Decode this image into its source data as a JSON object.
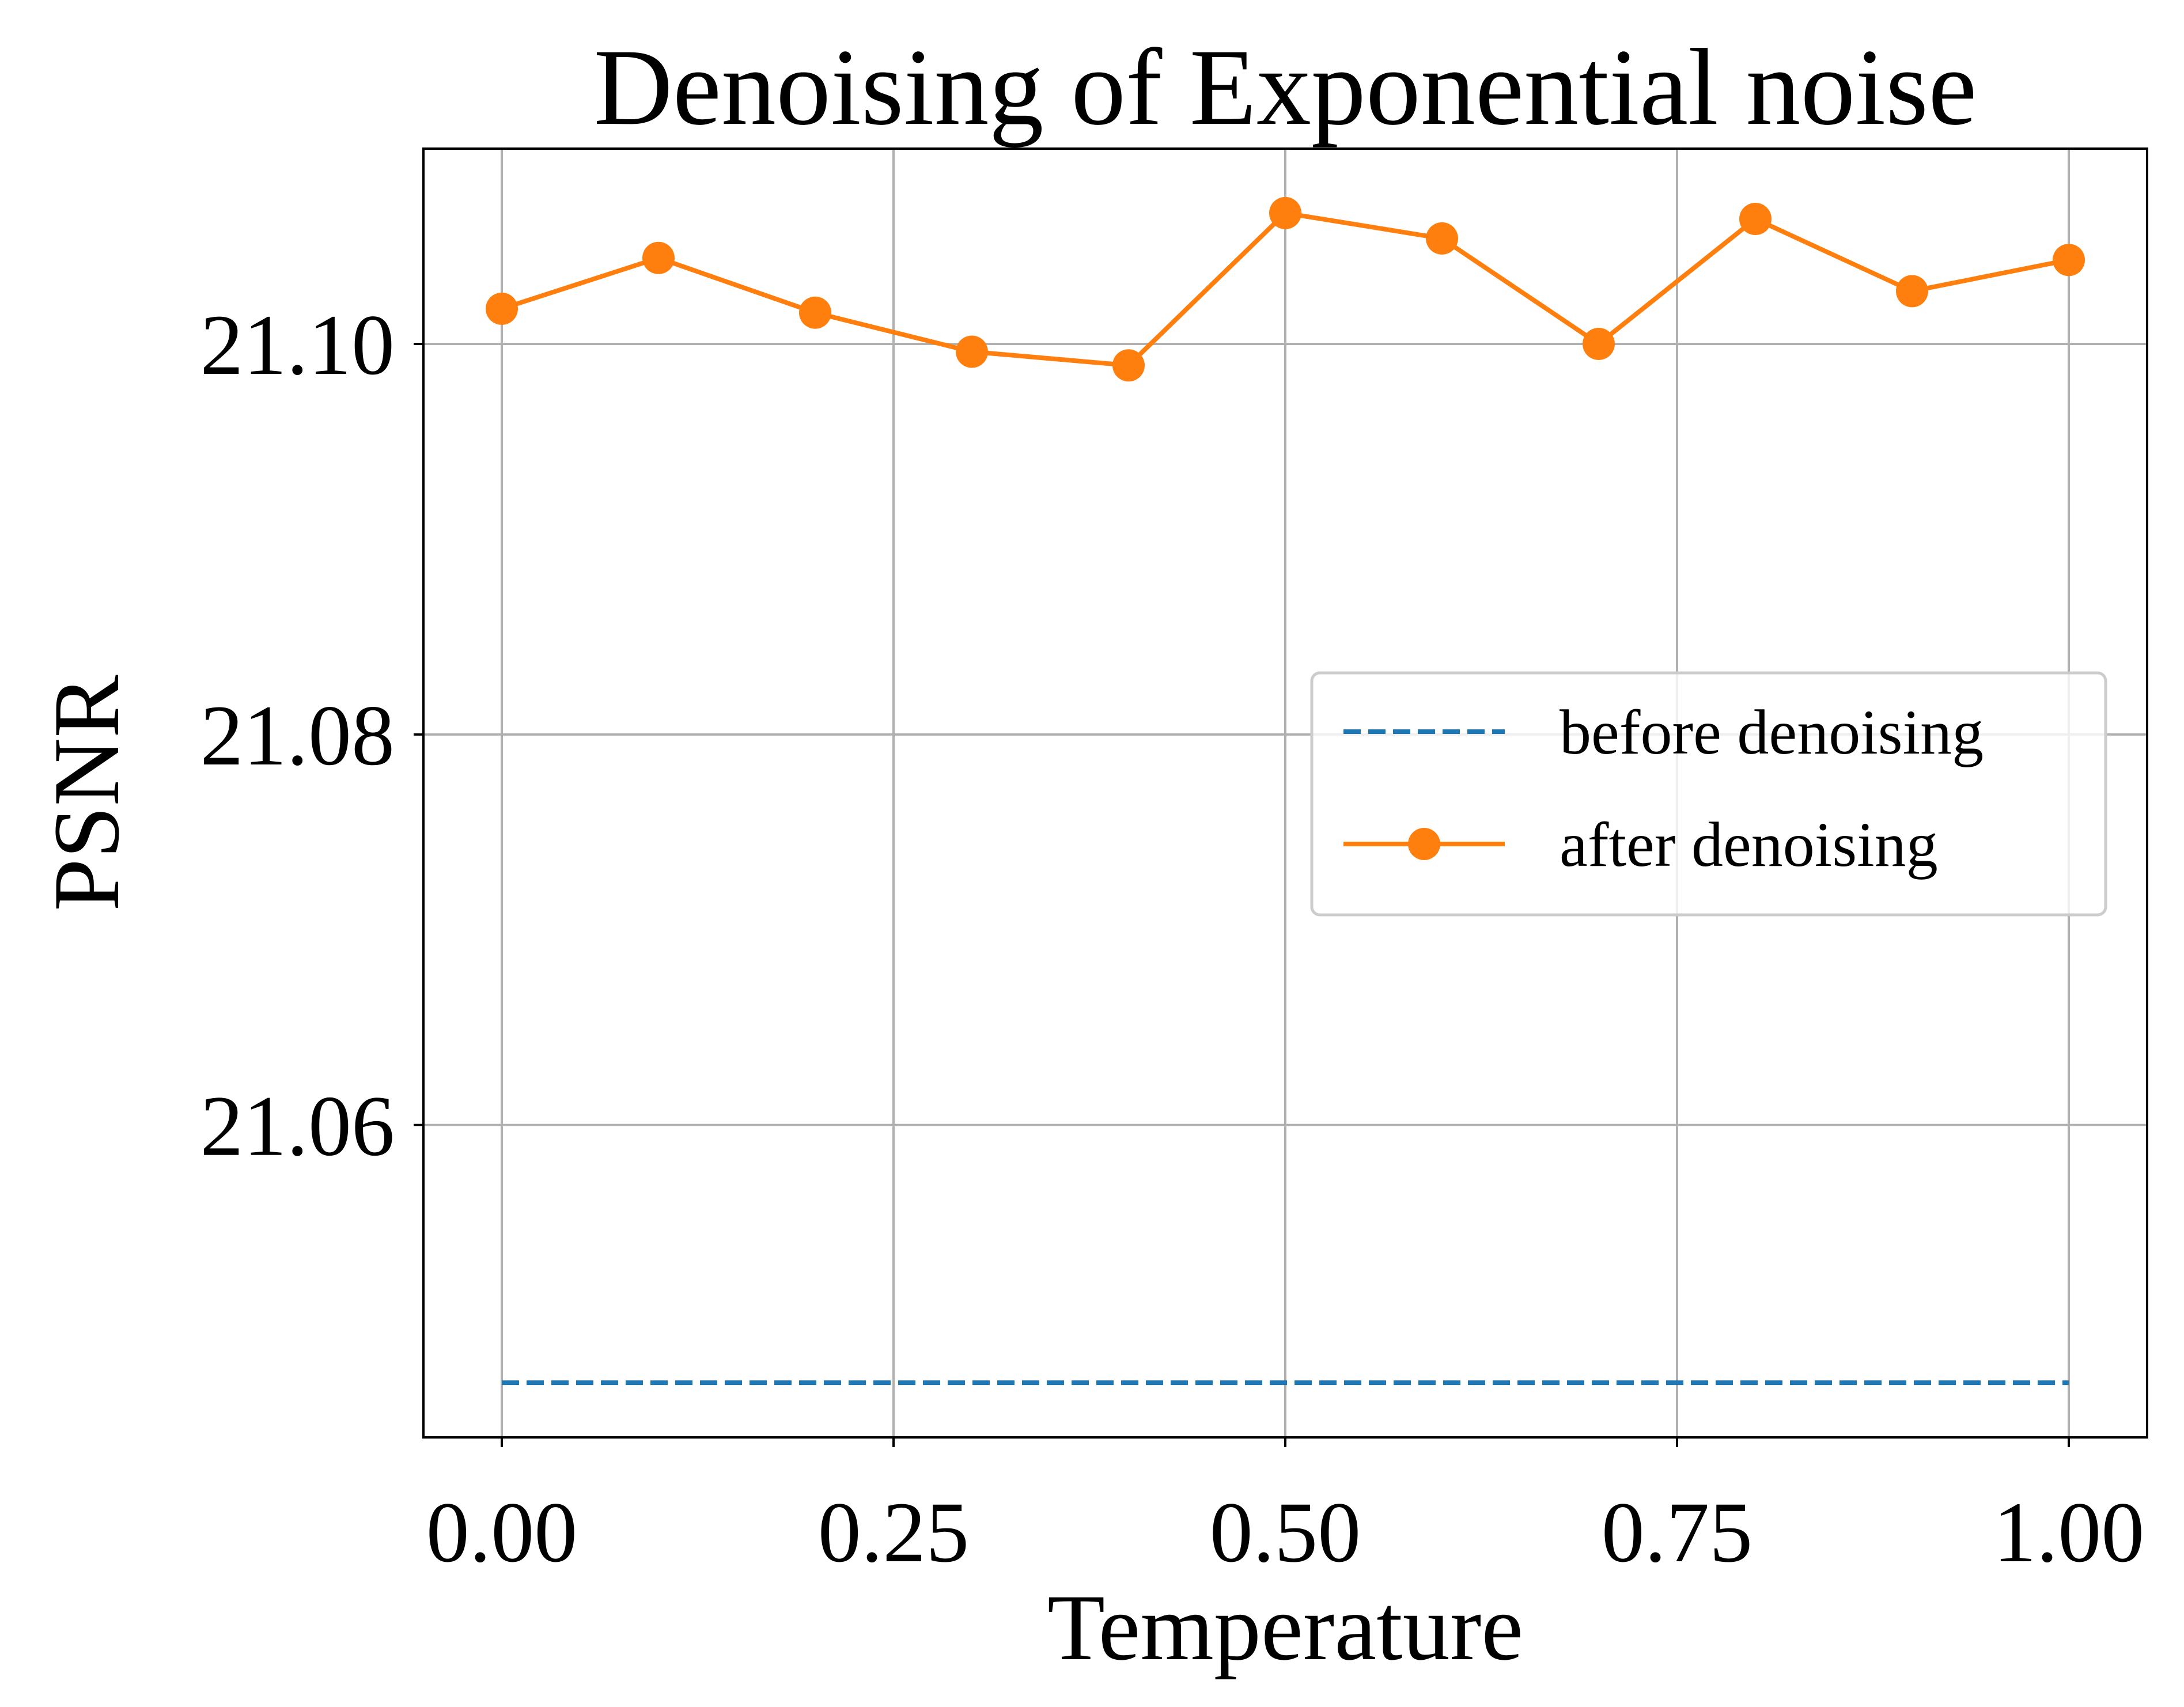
{
  "chart_data": {
    "type": "line",
    "title": "Denoising of Exponential noise",
    "xlabel": "Temperature",
    "ylabel": "PSNR",
    "xlim": [
      -0.05,
      1.05
    ],
    "ylim": [
      21.044,
      21.11
    ],
    "xticks": [
      0.0,
      0.25,
      0.5,
      0.75,
      1.0
    ],
    "xtick_labels": [
      "0.00",
      "0.25",
      "0.50",
      "0.75",
      "1.00"
    ],
    "yticks": [
      21.06,
      21.08,
      21.1
    ],
    "ytick_labels": [
      "21.06",
      "21.08",
      "21.10"
    ],
    "grid": true,
    "legend_position": "center-right",
    "series": [
      {
        "name": "before denoising",
        "style": "dashed",
        "marker": "none",
        "color": "#1f77b4",
        "x": [
          0.0,
          1.0
        ],
        "y": [
          21.0468,
          21.0468
        ]
      },
      {
        "name": "after denoising",
        "style": "solid",
        "marker": "circle",
        "color": "#ff7f0e",
        "x": [
          0.0,
          0.1,
          0.2,
          0.3,
          0.4,
          0.5,
          0.6,
          0.7,
          0.8,
          0.9,
          1.0
        ],
        "y": [
          21.1018,
          21.1044,
          21.1016,
          21.0996,
          21.0989,
          21.1067,
          21.1054,
          21.1,
          21.1064,
          21.1027,
          21.1043
        ]
      }
    ]
  }
}
